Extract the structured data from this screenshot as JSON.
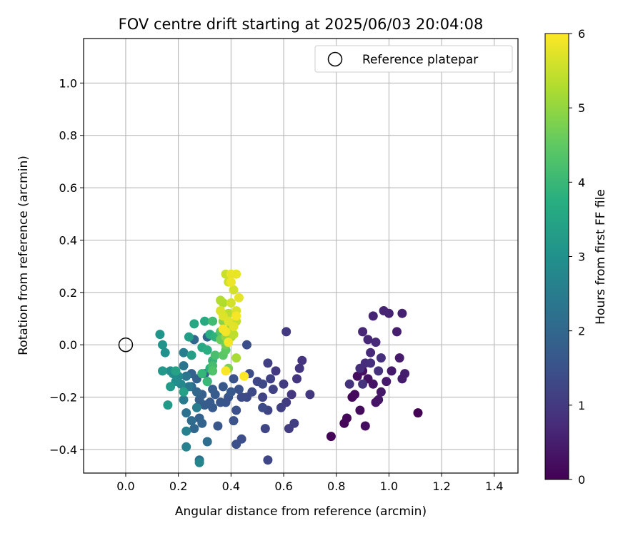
{
  "chart_data": {
    "type": "scatter",
    "title": "FOV centre drift starting at 2025/06/03 20:04:08",
    "xlabel": "Angular distance from reference (arcmin)",
    "ylabel": "Rotation from reference (arcmin)",
    "xlim": [
      -0.16,
      1.49
    ],
    "ylim": [
      -0.49,
      1.17
    ],
    "xticks": [
      0.0,
      0.2,
      0.4,
      0.6,
      0.8,
      1.0,
      1.2,
      1.4
    ],
    "xtick_labels": [
      "0.0",
      "0.2",
      "0.4",
      "0.6",
      "0.8",
      "1.0",
      "1.2",
      "1.4"
    ],
    "yticks": [
      -0.4,
      -0.2,
      0.0,
      0.2,
      0.4,
      0.6,
      0.8,
      1.0
    ],
    "ytick_labels": [
      "−0.4",
      "−0.2",
      "0.0",
      "0.2",
      "0.4",
      "0.6",
      "0.8",
      "1.0"
    ],
    "grid": true,
    "legend": {
      "position": "top-right",
      "label": "Reference platepar"
    },
    "reference_point": {
      "x": 0.0,
      "y": 0.0
    },
    "colorbar": {
      "label": "Hours from first FF file",
      "range": [
        0,
        6
      ],
      "ticks": [
        0,
        1,
        2,
        3,
        4,
        5,
        6
      ],
      "tick_labels": [
        "0",
        "1",
        "2",
        "3",
        "4",
        "5",
        "6"
      ],
      "colormap": "viridis"
    },
    "points": [
      {
        "x": 1.11,
        "y": -0.26,
        "h": 0.02
      },
      {
        "x": 0.78,
        "y": -0.35,
        "h": 0.05
      },
      {
        "x": 0.83,
        "y": -0.3,
        "h": 0.07
      },
      {
        "x": 0.84,
        "y": -0.28,
        "h": 0.1
      },
      {
        "x": 0.86,
        "y": -0.2,
        "h": 0.12
      },
      {
        "x": 0.87,
        "y": -0.19,
        "h": 0.15
      },
      {
        "x": 0.89,
        "y": -0.25,
        "h": 0.17
      },
      {
        "x": 0.91,
        "y": -0.31,
        "h": 0.2
      },
      {
        "x": 0.88,
        "y": -0.12,
        "h": 0.22
      },
      {
        "x": 0.9,
        "y": -0.1,
        "h": 0.25
      },
      {
        "x": 0.92,
        "y": -0.13,
        "h": 0.27
      },
      {
        "x": 0.94,
        "y": -0.15,
        "h": 0.3
      },
      {
        "x": 0.95,
        "y": -0.22,
        "h": 0.32
      },
      {
        "x": 0.96,
        "y": -0.21,
        "h": 0.35
      },
      {
        "x": 0.97,
        "y": -0.18,
        "h": 0.37
      },
      {
        "x": 0.99,
        "y": -0.14,
        "h": 0.4
      },
      {
        "x": 1.01,
        "y": -0.1,
        "h": 0.42
      },
      {
        "x": 1.04,
        "y": -0.05,
        "h": 0.45
      },
      {
        "x": 1.05,
        "y": -0.13,
        "h": 0.47
      },
      {
        "x": 1.06,
        "y": -0.11,
        "h": 0.5
      },
      {
        "x": 1.03,
        "y": 0.05,
        "h": 0.52
      },
      {
        "x": 1.05,
        "y": 0.12,
        "h": 0.55
      },
      {
        "x": 1.0,
        "y": 0.12,
        "h": 0.57
      },
      {
        "x": 0.98,
        "y": 0.13,
        "h": 0.6
      },
      {
        "x": 0.94,
        "y": 0.11,
        "h": 0.62
      },
      {
        "x": 0.9,
        "y": 0.05,
        "h": 0.65
      },
      {
        "x": 0.92,
        "y": 0.02,
        "h": 0.67
      },
      {
        "x": 0.95,
        "y": 0.01,
        "h": 0.7
      },
      {
        "x": 0.93,
        "y": -0.03,
        "h": 0.72
      },
      {
        "x": 0.91,
        "y": -0.07,
        "h": 0.75
      },
      {
        "x": 0.89,
        "y": -0.09,
        "h": 0.77
      },
      {
        "x": 0.93,
        "y": -0.07,
        "h": 0.8
      },
      {
        "x": 0.97,
        "y": -0.05,
        "h": 0.82
      },
      {
        "x": 0.96,
        "y": -0.1,
        "h": 0.84
      },
      {
        "x": 0.85,
        "y": -0.15,
        "h": 0.86
      },
      {
        "x": 0.9,
        "y": -0.15,
        "h": 0.88
      },
      {
        "x": 0.67,
        "y": -0.06,
        "h": 0.9
      },
      {
        "x": 0.66,
        "y": -0.09,
        "h": 0.92
      },
      {
        "x": 0.65,
        "y": -0.13,
        "h": 0.94
      },
      {
        "x": 0.63,
        "y": -0.19,
        "h": 0.96
      },
      {
        "x": 0.7,
        "y": -0.19,
        "h": 0.98
      },
      {
        "x": 0.61,
        "y": 0.05,
        "h": 1.0
      },
      {
        "x": 0.57,
        "y": -0.1,
        "h": 1.02
      },
      {
        "x": 0.6,
        "y": -0.15,
        "h": 1.04
      },
      {
        "x": 0.61,
        "y": -0.22,
        "h": 1.06
      },
      {
        "x": 0.62,
        "y": -0.32,
        "h": 1.08
      },
      {
        "x": 0.64,
        "y": -0.3,
        "h": 1.1
      },
      {
        "x": 0.59,
        "y": -0.24,
        "h": 1.12
      },
      {
        "x": 0.54,
        "y": -0.07,
        "h": 1.14
      },
      {
        "x": 0.55,
        "y": -0.13,
        "h": 1.16
      },
      {
        "x": 0.56,
        "y": -0.17,
        "h": 1.18
      },
      {
        "x": 0.52,
        "y": -0.2,
        "h": 1.2
      },
      {
        "x": 0.54,
        "y": -0.25,
        "h": 1.22
      },
      {
        "x": 0.53,
        "y": -0.32,
        "h": 1.24
      },
      {
        "x": 0.54,
        "y": -0.44,
        "h": 1.26
      },
      {
        "x": 0.5,
        "y": -0.14,
        "h": 1.28
      },
      {
        "x": 0.52,
        "y": -0.15,
        "h": 1.3
      },
      {
        "x": 0.48,
        "y": -0.18,
        "h": 1.32
      },
      {
        "x": 0.46,
        "y": -0.2,
        "h": 1.34
      },
      {
        "x": 0.52,
        "y": -0.24,
        "h": 1.36
      },
      {
        "x": 0.44,
        "y": -0.2,
        "h": 1.38
      },
      {
        "x": 0.47,
        "y": -0.11,
        "h": 1.4
      },
      {
        "x": 0.46,
        "y": 0.0,
        "h": 1.42
      },
      {
        "x": 0.44,
        "y": -0.36,
        "h": 1.44
      },
      {
        "x": 0.42,
        "y": -0.38,
        "h": 1.46
      },
      {
        "x": 0.42,
        "y": -0.25,
        "h": 1.48
      },
      {
        "x": 0.41,
        "y": -0.29,
        "h": 1.5
      },
      {
        "x": 0.43,
        "y": -0.17,
        "h": 1.52
      },
      {
        "x": 0.41,
        "y": -0.13,
        "h": 1.54
      },
      {
        "x": 0.39,
        "y": -0.2,
        "h": 1.56
      },
      {
        "x": 0.38,
        "y": -0.22,
        "h": 1.58
      },
      {
        "x": 0.36,
        "y": -0.22,
        "h": 1.6
      },
      {
        "x": 0.35,
        "y": -0.31,
        "h": 1.62
      },
      {
        "x": 0.37,
        "y": -0.16,
        "h": 1.64
      },
      {
        "x": 0.4,
        "y": -0.18,
        "h": 1.66
      },
      {
        "x": 0.33,
        "y": -0.24,
        "h": 1.68
      },
      {
        "x": 0.34,
        "y": -0.19,
        "h": 1.7
      },
      {
        "x": 0.32,
        "y": -0.22,
        "h": 1.72
      },
      {
        "x": 0.3,
        "y": -0.23,
        "h": 1.74
      },
      {
        "x": 0.33,
        "y": -0.17,
        "h": 1.76
      },
      {
        "x": 0.31,
        "y": -0.14,
        "h": 1.78
      },
      {
        "x": 0.29,
        "y": -0.19,
        "h": 1.8
      },
      {
        "x": 0.28,
        "y": -0.21,
        "h": 1.82
      },
      {
        "x": 0.3,
        "y": -0.11,
        "h": 1.84
      },
      {
        "x": 0.27,
        "y": -0.13,
        "h": 1.86
      },
      {
        "x": 0.25,
        "y": -0.11,
        "h": 1.88
      },
      {
        "x": 0.28,
        "y": -0.28,
        "h": 1.9
      },
      {
        "x": 0.29,
        "y": -0.3,
        "h": 1.92
      },
      {
        "x": 0.31,
        "y": 0.03,
        "h": 1.94
      },
      {
        "x": 0.26,
        "y": 0.02,
        "h": 1.96
      },
      {
        "x": 0.26,
        "y": -0.32,
        "h": 1.98
      },
      {
        "x": 0.27,
        "y": -0.18,
        "h": 2.0
      },
      {
        "x": 0.25,
        "y": -0.16,
        "h": 2.05
      },
      {
        "x": 0.25,
        "y": -0.29,
        "h": 2.1
      },
      {
        "x": 0.31,
        "y": -0.37,
        "h": 2.15
      },
      {
        "x": 0.28,
        "y": -0.44,
        "h": 2.2
      },
      {
        "x": 0.23,
        "y": -0.26,
        "h": 2.25
      },
      {
        "x": 0.22,
        "y": -0.08,
        "h": 2.3
      },
      {
        "x": 0.23,
        "y": -0.12,
        "h": 2.35
      },
      {
        "x": 0.24,
        "y": -0.16,
        "h": 2.4
      },
      {
        "x": 0.22,
        "y": -0.21,
        "h": 2.45
      },
      {
        "x": 0.27,
        "y": -0.24,
        "h": 2.5
      },
      {
        "x": 0.22,
        "y": -0.03,
        "h": 2.55
      },
      {
        "x": 0.23,
        "y": -0.33,
        "h": 2.6
      },
      {
        "x": 0.23,
        "y": -0.39,
        "h": 2.65
      },
      {
        "x": 0.28,
        "y": -0.45,
        "h": 2.7
      },
      {
        "x": 0.21,
        "y": -0.15,
        "h": 2.75
      },
      {
        "x": 0.2,
        "y": -0.12,
        "h": 2.8
      },
      {
        "x": 0.18,
        "y": -0.11,
        "h": 2.85
      },
      {
        "x": 0.19,
        "y": -0.14,
        "h": 2.9
      },
      {
        "x": 0.17,
        "y": -0.1,
        "h": 2.95
      },
      {
        "x": 0.15,
        "y": -0.03,
        "h": 3.0
      },
      {
        "x": 0.14,
        "y": 0.0,
        "h": 3.05
      },
      {
        "x": 0.13,
        "y": 0.04,
        "h": 3.1
      },
      {
        "x": 0.14,
        "y": -0.1,
        "h": 3.15
      },
      {
        "x": 0.16,
        "y": -0.23,
        "h": 3.2
      },
      {
        "x": 0.17,
        "y": -0.16,
        "h": 3.25
      },
      {
        "x": 0.24,
        "y": 0.03,
        "h": 3.3
      },
      {
        "x": 0.25,
        "y": -0.04,
        "h": 3.35
      },
      {
        "x": 0.22,
        "y": -0.18,
        "h": 3.4
      },
      {
        "x": 0.19,
        "y": -0.1,
        "h": 3.45
      },
      {
        "x": 0.26,
        "y": 0.08,
        "h": 3.55
      },
      {
        "x": 0.29,
        "y": -0.01,
        "h": 3.6
      },
      {
        "x": 0.3,
        "y": 0.09,
        "h": 3.65
      },
      {
        "x": 0.32,
        "y": 0.04,
        "h": 3.7
      },
      {
        "x": 0.31,
        "y": -0.02,
        "h": 3.75
      },
      {
        "x": 0.32,
        "y": -0.09,
        "h": 3.8
      },
      {
        "x": 0.34,
        "y": 0.03,
        "h": 3.85
      },
      {
        "x": 0.33,
        "y": -0.06,
        "h": 3.9
      },
      {
        "x": 0.29,
        "y": -0.11,
        "h": 3.95
      },
      {
        "x": 0.31,
        "y": -0.14,
        "h": 4.0
      },
      {
        "x": 0.33,
        "y": 0.09,
        "h": 4.1
      },
      {
        "x": 0.33,
        "y": -0.08,
        "h": 4.15
      },
      {
        "x": 0.34,
        "y": -0.04,
        "h": 4.2
      },
      {
        "x": 0.33,
        "y": -0.1,
        "h": 4.3
      },
      {
        "x": 0.36,
        "y": 0.05,
        "h": 4.4
      },
      {
        "x": 0.37,
        "y": -0.04,
        "h": 4.45
      },
      {
        "x": 0.38,
        "y": -0.02,
        "h": 4.5
      },
      {
        "x": 0.36,
        "y": 0.02,
        "h": 4.6
      },
      {
        "x": 0.38,
        "y": 0.0,
        "h": 4.7
      },
      {
        "x": 0.39,
        "y": -0.09,
        "h": 4.8
      },
      {
        "x": 0.37,
        "y": 0.09,
        "h": 4.9
      },
      {
        "x": 0.38,
        "y": 0.03,
        "h": 5.0
      },
      {
        "x": 0.4,
        "y": 0.07,
        "h": 5.1
      },
      {
        "x": 0.4,
        "y": 0.03,
        "h": 5.15
      },
      {
        "x": 0.42,
        "y": -0.05,
        "h": 5.2
      },
      {
        "x": 0.37,
        "y": 0.16,
        "h": 5.25
      },
      {
        "x": 0.36,
        "y": 0.17,
        "h": 5.3
      },
      {
        "x": 0.39,
        "y": 0.12,
        "h": 5.35
      },
      {
        "x": 0.41,
        "y": 0.04,
        "h": 5.4
      },
      {
        "x": 0.42,
        "y": 0.09,
        "h": 5.45
      },
      {
        "x": 0.38,
        "y": 0.27,
        "h": 5.5
      },
      {
        "x": 0.39,
        "y": 0.24,
        "h": 5.55
      },
      {
        "x": 0.41,
        "y": 0.21,
        "h": 5.6
      },
      {
        "x": 0.4,
        "y": 0.16,
        "h": 5.62
      },
      {
        "x": 0.42,
        "y": 0.13,
        "h": 5.65
      },
      {
        "x": 0.36,
        "y": 0.13,
        "h": 5.68
      },
      {
        "x": 0.37,
        "y": 0.11,
        "h": 5.7
      },
      {
        "x": 0.39,
        "y": 0.09,
        "h": 5.72
      },
      {
        "x": 0.41,
        "y": 0.07,
        "h": 5.75
      },
      {
        "x": 0.43,
        "y": 0.18,
        "h": 5.78
      },
      {
        "x": 0.42,
        "y": 0.27,
        "h": 5.8
      },
      {
        "x": 0.4,
        "y": 0.27,
        "h": 5.82
      },
      {
        "x": 0.4,
        "y": 0.24,
        "h": 5.85
      },
      {
        "x": 0.38,
        "y": 0.05,
        "h": 5.88
      },
      {
        "x": 0.39,
        "y": 0.01,
        "h": 5.9
      },
      {
        "x": 0.37,
        "y": 0.06,
        "h": 5.92
      },
      {
        "x": 0.42,
        "y": 0.11,
        "h": 5.94
      },
      {
        "x": 0.38,
        "y": -0.1,
        "h": 5.96
      },
      {
        "x": 0.45,
        "y": -0.12,
        "h": 5.98
      }
    ]
  }
}
